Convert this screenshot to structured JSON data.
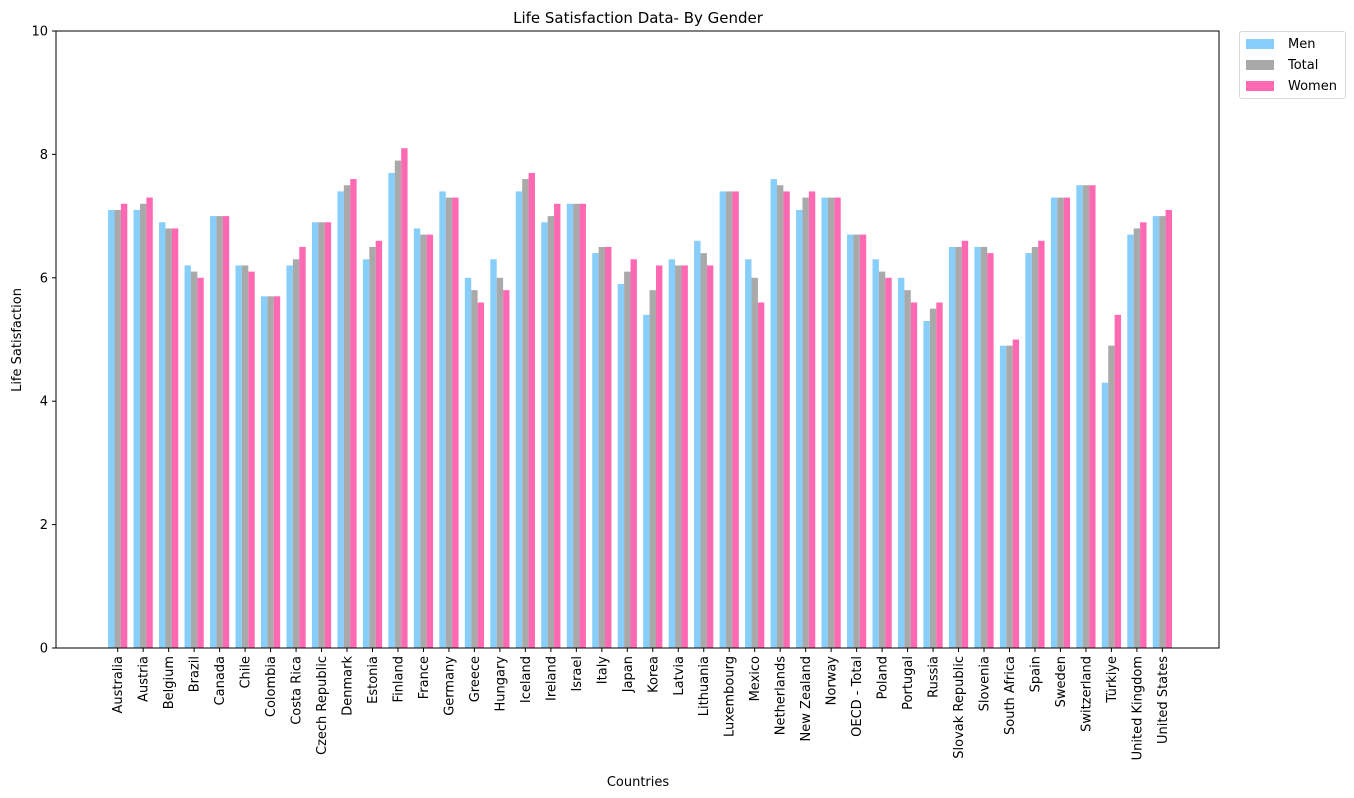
{
  "chart_data": {
    "type": "bar",
    "title": "Life Satisfaction Data- By Gender",
    "xlabel": "Countries",
    "ylabel": "Life Satisfaction",
    "ylim": [
      0,
      10
    ],
    "yticks": [
      "0",
      "2",
      "4",
      "6",
      "8",
      "10"
    ],
    "grid": false,
    "legend": "outside-top-right",
    "categories": [
      "Australia",
      "Austria",
      "Belgium",
      "Brazil",
      "Canada",
      "Chile",
      "Colombia",
      "Costa Rica",
      "Czech Republic",
      "Denmark",
      "Estonia",
      "Finland",
      "France",
      "Germany",
      "Greece",
      "Hungary",
      "Iceland",
      "Ireland",
      "Israel",
      "Italy",
      "Japan",
      "Korea",
      "Latvia",
      "Lithuania",
      "Luxembourg",
      "Mexico",
      "Netherlands",
      "New Zealand",
      "Norway",
      "OECD - Total",
      "Poland",
      "Portugal",
      "Russia",
      "Slovak Republic",
      "Slovenia",
      "South Africa",
      "Spain",
      "Sweden",
      "Switzerland",
      "Türkiye",
      "United Kingdom",
      "United States"
    ],
    "series": [
      {
        "name": "Men",
        "color": "#87CEFA",
        "values": [
          7.1,
          7.1,
          6.9,
          6.2,
          7.0,
          6.2,
          5.7,
          6.2,
          6.9,
          7.4,
          6.3,
          7.7,
          6.8,
          7.4,
          6.0,
          6.3,
          7.4,
          6.9,
          7.2,
          6.4,
          5.9,
          5.4,
          6.3,
          6.6,
          7.4,
          6.3,
          7.6,
          7.1,
          7.3,
          6.7,
          6.3,
          6.0,
          5.3,
          6.5,
          6.5,
          4.9,
          6.4,
          7.3,
          7.5,
          4.3,
          6.7,
          7.0
        ]
      },
      {
        "name": "Total",
        "color": "#A9A9A9",
        "values": [
          7.1,
          7.2,
          6.8,
          6.1,
          7.0,
          6.2,
          5.7,
          6.3,
          6.9,
          7.5,
          6.5,
          7.9,
          6.7,
          7.3,
          5.8,
          6.0,
          7.6,
          7.0,
          7.2,
          6.5,
          6.1,
          5.8,
          6.2,
          6.4,
          7.4,
          6.0,
          7.5,
          7.3,
          7.3,
          6.7,
          6.1,
          5.8,
          5.5,
          6.5,
          6.5,
          4.9,
          6.5,
          7.3,
          7.5,
          4.9,
          6.8,
          7.0
        ]
      },
      {
        "name": "Women",
        "color": "#FF69B4",
        "values": [
          7.2,
          7.3,
          6.8,
          6.0,
          7.0,
          6.1,
          5.7,
          6.5,
          6.9,
          7.6,
          6.6,
          8.1,
          6.7,
          7.3,
          5.6,
          5.8,
          7.7,
          7.2,
          7.2,
          6.5,
          6.3,
          6.2,
          6.2,
          6.2,
          7.4,
          5.6,
          7.4,
          7.4,
          7.3,
          6.7,
          6.0,
          5.6,
          5.6,
          6.6,
          6.4,
          5.0,
          6.6,
          7.3,
          7.5,
          5.4,
          6.9,
          7.1
        ]
      }
    ]
  }
}
